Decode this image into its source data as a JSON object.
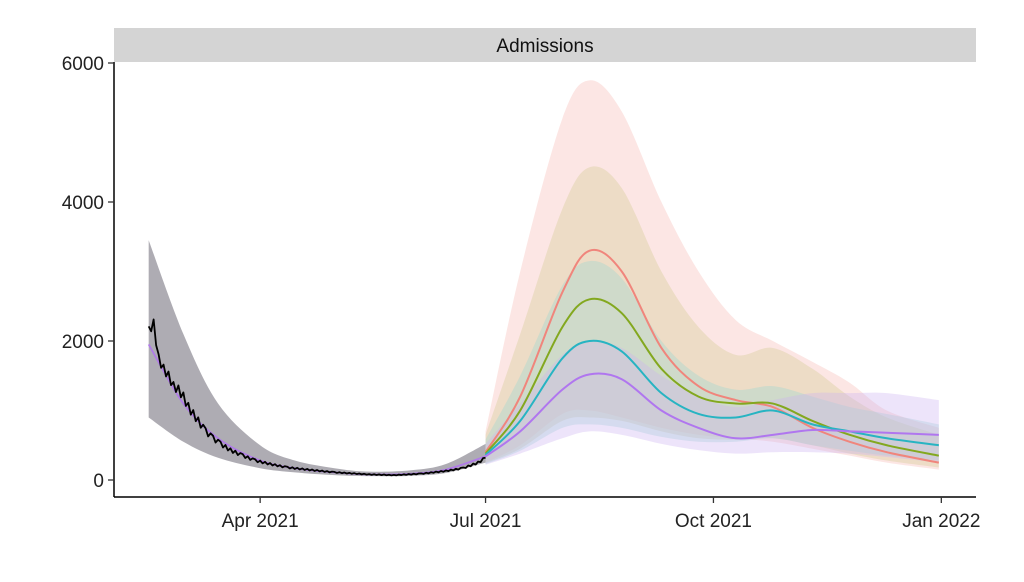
{
  "chart_data": {
    "type": "line",
    "facet_title": "Admissions",
    "xlabel": "",
    "ylabel": "",
    "x_is_date": true,
    "xlim": [
      "2021-02-01",
      "2022-01-15"
    ],
    "ylim": [
      0,
      6000
    ],
    "x_ticks": [
      {
        "value": "2021-04-01",
        "label": "Apr 2021"
      },
      {
        "value": "2021-07-01",
        "label": "Jul 2021"
      },
      {
        "value": "2021-10-01",
        "label": "Oct 2021"
      },
      {
        "value": "2022-01-01",
        "label": "Jan 2022"
      }
    ],
    "y_ticks": [
      {
        "value": 0,
        "label": "0"
      },
      {
        "value": 2000,
        "label": "2000"
      },
      {
        "value": 4000,
        "label": "4000"
      },
      {
        "value": 6000,
        "label": "6000"
      }
    ],
    "grid": false,
    "legend": "none",
    "observed": {
      "color": "#000000",
      "x": [
        "2021-02-15",
        "2021-02-17",
        "2021-02-19",
        "2021-02-21",
        "2021-02-23",
        "2021-02-25",
        "2021-02-27",
        "2021-03-01",
        "2021-03-03",
        "2021-03-05",
        "2021-03-07",
        "2021-03-10",
        "2021-03-13",
        "2021-03-16",
        "2021-03-20",
        "2021-03-25",
        "2021-03-30",
        "2021-04-05",
        "2021-04-12",
        "2021-04-20",
        "2021-05-01",
        "2021-05-15",
        "2021-05-25",
        "2021-06-05",
        "2021-06-15",
        "2021-06-22",
        "2021-06-28",
        "2021-07-01"
      ],
      "y": [
        2150,
        2250,
        1750,
        1600,
        1500,
        1350,
        1300,
        1200,
        1050,
        950,
        850,
        700,
        600,
        520,
        430,
        350,
        280,
        230,
        180,
        150,
        110,
        80,
        70,
        90,
        130,
        170,
        250,
        320
      ]
    },
    "model_fit": {
      "color": "#b07be8",
      "band_color": "#6b6775",
      "x": [
        "2021-02-15",
        "2021-03-01",
        "2021-03-15",
        "2021-04-01",
        "2021-04-15",
        "2021-05-01",
        "2021-05-15",
        "2021-06-01",
        "2021-06-15",
        "2021-07-01"
      ],
      "y": [
        1950,
        1100,
        600,
        280,
        170,
        110,
        80,
        90,
        150,
        340
      ],
      "lower": [
        900,
        550,
        320,
        170,
        110,
        70,
        55,
        60,
        100,
        250
      ],
      "upper": [
        3450,
        2100,
        1100,
        500,
        280,
        170,
        120,
        140,
        230,
        520
      ]
    },
    "projection_x": [
      "2021-07-01",
      "2021-07-15",
      "2021-08-01",
      "2021-08-12",
      "2021-08-25",
      "2021-09-10",
      "2021-09-25",
      "2021-10-10",
      "2021-10-25",
      "2021-11-10",
      "2021-11-25",
      "2021-12-10",
      "2021-12-31"
    ],
    "series": [
      {
        "color": "#f0857c",
        "band_color": "#f5b8b2",
        "y": [
          400,
          1200,
          2700,
          3300,
          3000,
          1900,
          1350,
          1150,
          1050,
          750,
          550,
          400,
          250
        ],
        "lower": [
          250,
          500,
          950,
          1000,
          900,
          750,
          650,
          600,
          550,
          450,
          350,
          250,
          150
        ],
        "upper": [
          700,
          3000,
          5200,
          5750,
          5300,
          4000,
          3000,
          2300,
          2000,
          1700,
          1400,
          1000,
          750
        ]
      },
      {
        "color": "#83a81f",
        "band_color": "#d2c98f",
        "y": [
          380,
          1000,
          2200,
          2600,
          2400,
          1600,
          1200,
          1100,
          1100,
          850,
          650,
          500,
          350
        ],
        "lower": [
          240,
          450,
          850,
          900,
          850,
          700,
          600,
          580,
          600,
          500,
          380,
          280,
          180
        ],
        "upper": [
          650,
          2100,
          3900,
          4500,
          4200,
          3000,
          2200,
          1800,
          1900,
          1600,
          1200,
          900,
          650
        ]
      },
      {
        "color": "#27b4c2",
        "band_color": "#99d6d2",
        "y": [
          360,
          850,
          1750,
          2000,
          1850,
          1250,
          950,
          900,
          1000,
          800,
          700,
          600,
          500
        ],
        "lower": [
          230,
          420,
          750,
          800,
          750,
          620,
          550,
          550,
          600,
          500,
          420,
          350,
          280
        ],
        "upper": [
          580,
          1500,
          2800,
          3150,
          2900,
          2000,
          1500,
          1300,
          1350,
          1200,
          1050,
          950,
          800
        ]
      },
      {
        "color": "#b076ef",
        "band_color": "#cbb2f2",
        "y": [
          340,
          700,
          1300,
          1520,
          1450,
          1000,
          750,
          600,
          650,
          720,
          700,
          680,
          650
        ],
        "lower": [
          220,
          380,
          600,
          700,
          650,
          520,
          430,
          380,
          400,
          400,
          380,
          330,
          250
        ],
        "upper": [
          520,
          1100,
          1800,
          2000,
          1900,
          1500,
          1200,
          1050,
          1150,
          1250,
          1250,
          1250,
          1150
        ]
      }
    ]
  }
}
